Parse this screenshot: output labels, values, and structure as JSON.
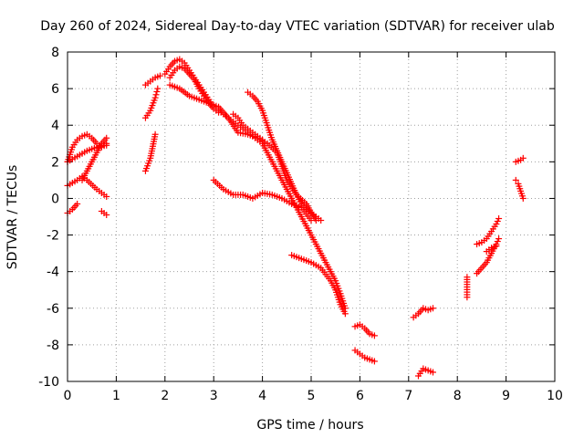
{
  "chart_data": {
    "type": "scatter",
    "title": "Day 260 of 2024, Sidereal Day-to-day VTEC variation (SDTVAR) for receiver ulab",
    "xlabel": "GPS time / hours",
    "ylabel": "SDTVAR / TECUs",
    "xlim": [
      0,
      10
    ],
    "ylim": [
      -10,
      8
    ],
    "xticks": [
      "0",
      "1",
      "2",
      "3",
      "4",
      "5",
      "6",
      "7",
      "8",
      "9",
      "10"
    ],
    "yticks": [
      "-10",
      "-8",
      "-6",
      "-4",
      "-2",
      "0",
      "2",
      "4",
      "6",
      "8"
    ],
    "grid": true,
    "marker": "+",
    "color": "#ff0000",
    "series": [
      {
        "name": "s1",
        "x": [
          0.0,
          0.1,
          0.2,
          0.3,
          0.4,
          0.5,
          0.6,
          0.7,
          0.8
        ],
        "y": [
          2.0,
          2.8,
          3.2,
          3.4,
          3.5,
          3.3,
          3.0,
          2.8,
          3.0
        ]
      },
      {
        "name": "s2",
        "x": [
          0.0,
          0.2,
          0.4,
          0.6,
          0.8
        ],
        "y": [
          2.0,
          2.3,
          2.6,
          2.8,
          2.9
        ]
      },
      {
        "name": "s3",
        "x": [
          0.0,
          0.2,
          0.3,
          0.4,
          0.6,
          0.7,
          0.8
        ],
        "y": [
          0.7,
          1.0,
          1.2,
          1.0,
          0.5,
          0.3,
          0.1
        ]
      },
      {
        "name": "s4",
        "x": [
          0.0,
          0.1,
          0.2
        ],
        "y": [
          -0.8,
          -0.6,
          -0.3
        ]
      },
      {
        "name": "s5",
        "x": [
          0.3,
          0.4,
          0.5,
          0.6,
          0.7,
          0.8
        ],
        "y": [
          1.0,
          1.5,
          2.0,
          2.5,
          3.0,
          3.3
        ]
      },
      {
        "name": "s6",
        "x": [
          0.7,
          0.8
        ],
        "y": [
          -0.7,
          -0.9
        ]
      },
      {
        "name": "s7",
        "x": [
          1.6,
          1.7,
          1.8,
          1.9
        ],
        "y": [
          6.2,
          6.4,
          6.6,
          6.7
        ]
      },
      {
        "name": "s8",
        "x": [
          1.6,
          1.7,
          1.8,
          1.85
        ],
        "y": [
          4.4,
          4.8,
          5.5,
          6.0
        ]
      },
      {
        "name": "s9",
        "x": [
          1.6,
          1.7,
          1.8
        ],
        "y": [
          1.5,
          2.2,
          3.5
        ]
      },
      {
        "name": "s10",
        "x": [
          2.0,
          2.1,
          2.2,
          2.3,
          2.4,
          2.5,
          2.6,
          2.7,
          2.8,
          2.9,
          3.0,
          3.1,
          3.2,
          3.3,
          3.4,
          3.5,
          3.6,
          3.7,
          3.8,
          3.9,
          4.0,
          4.1,
          4.2,
          4.3,
          4.4,
          4.5,
          4.6,
          4.7,
          4.8,
          4.9,
          5.0,
          5.1,
          5.2,
          5.3,
          5.4,
          5.5,
          5.6,
          5.7
        ],
        "y": [
          6.8,
          7.2,
          7.5,
          7.6,
          7.4,
          7.0,
          6.6,
          6.2,
          5.8,
          5.4,
          5.0,
          4.8,
          4.6,
          4.4,
          4.2,
          4.0,
          3.8,
          3.6,
          3.4,
          3.2,
          3.0,
          2.5,
          2.0,
          1.5,
          1.0,
          0.5,
          0.0,
          -0.5,
          -1.0,
          -1.5,
          -2.0,
          -2.5,
          -3.0,
          -3.5,
          -4.0,
          -4.5,
          -5.2,
          -6.0
        ]
      },
      {
        "name": "s11",
        "x": [
          2.1,
          2.2,
          2.3,
          2.4,
          2.5,
          2.6,
          2.7,
          2.8,
          2.9,
          3.0,
          3.1
        ],
        "y": [
          6.6,
          7.0,
          7.2,
          7.1,
          6.8,
          6.5,
          6.0,
          5.6,
          5.2,
          4.9,
          4.7
        ]
      },
      {
        "name": "s12",
        "x": [
          2.1,
          2.3,
          2.5,
          2.7,
          2.9,
          3.1,
          3.3,
          3.5,
          3.7,
          3.9,
          4.1,
          4.3,
          4.5,
          4.7,
          4.9,
          5.1
        ],
        "y": [
          6.2,
          6.0,
          5.6,
          5.4,
          5.2,
          5.0,
          4.4,
          3.6,
          3.5,
          3.3,
          3.0,
          2.5,
          1.0,
          0.2,
          -0.3,
          -1.2
        ]
      },
      {
        "name": "s13",
        "x": [
          3.0,
          3.2,
          3.4,
          3.6,
          3.8,
          4.0,
          4.2,
          4.4,
          4.6,
          4.8,
          5.0
        ],
        "y": [
          1.0,
          0.5,
          0.2,
          0.2,
          0.0,
          0.3,
          0.2,
          0.0,
          -0.3,
          -0.5,
          -1.2
        ]
      },
      {
        "name": "s14",
        "x": [
          3.4,
          3.5,
          3.6,
          3.7,
          3.8,
          3.9,
          4.0
        ],
        "y": [
          4.6,
          4.4,
          4.0,
          3.8,
          3.6,
          3.4,
          3.2
        ]
      },
      {
        "name": "s15",
        "x": [
          3.7,
          3.8,
          3.9,
          4.0,
          4.1,
          4.2,
          4.3,
          4.4,
          4.5,
          4.6,
          4.7,
          4.8,
          4.9,
          5.0,
          5.1,
          5.2
        ],
        "y": [
          5.8,
          5.6,
          5.3,
          4.8,
          4.0,
          3.2,
          2.6,
          2.0,
          1.4,
          0.8,
          0.2,
          -0.3,
          -0.6,
          -0.8,
          -1.0,
          -1.2
        ]
      },
      {
        "name": "s16",
        "x": [
          4.6,
          4.8,
          5.0,
          5.2,
          5.4,
          5.5,
          5.6,
          5.7
        ],
        "y": [
          -3.1,
          -3.3,
          -3.5,
          -3.8,
          -4.5,
          -5.0,
          -5.8,
          -6.3
        ]
      },
      {
        "name": "s17",
        "x": [
          5.9,
          6.0,
          6.1,
          6.2,
          6.3
        ],
        "y": [
          -7.0,
          -6.9,
          -7.1,
          -7.4,
          -7.5
        ]
      },
      {
        "name": "s18",
        "x": [
          5.9,
          6.0,
          6.1,
          6.2,
          6.3
        ],
        "y": [
          -8.3,
          -8.5,
          -8.7,
          -8.8,
          -8.9
        ]
      },
      {
        "name": "s19",
        "x": [
          7.1,
          7.2,
          7.3,
          7.4,
          7.5
        ],
        "y": [
          -6.5,
          -6.3,
          -6.0,
          -6.1,
          -6.0
        ]
      },
      {
        "name": "s20",
        "x": [
          7.2,
          7.3,
          7.4,
          7.5
        ],
        "y": [
          -9.7,
          -9.3,
          -9.4,
          -9.5
        ]
      },
      {
        "name": "s21",
        "x": [
          8.2,
          8.2,
          8.2
        ],
        "y": [
          -4.3,
          -4.7,
          -5.4
        ]
      },
      {
        "name": "s22",
        "x": [
          8.4,
          8.5,
          8.6,
          8.7,
          8.8,
          8.85
        ],
        "y": [
          -4.1,
          -3.8,
          -3.5,
          -3.0,
          -2.5,
          -2.2
        ]
      },
      {
        "name": "s23",
        "x": [
          8.4,
          8.5,
          8.6,
          8.7,
          8.8,
          8.85
        ],
        "y": [
          -2.5,
          -2.4,
          -2.2,
          -1.8,
          -1.4,
          -1.1
        ]
      },
      {
        "name": "s24",
        "x": [
          8.6,
          8.7,
          8.8
        ],
        "y": [
          -2.9,
          -2.7,
          -2.6
        ]
      },
      {
        "name": "s25",
        "x": [
          9.2,
          9.3,
          9.35
        ],
        "y": [
          2.0,
          2.1,
          2.2
        ]
      },
      {
        "name": "s26",
        "x": [
          9.2,
          9.25,
          9.3,
          9.35
        ],
        "y": [
          1.0,
          0.8,
          0.4,
          0.0
        ]
      }
    ]
  }
}
